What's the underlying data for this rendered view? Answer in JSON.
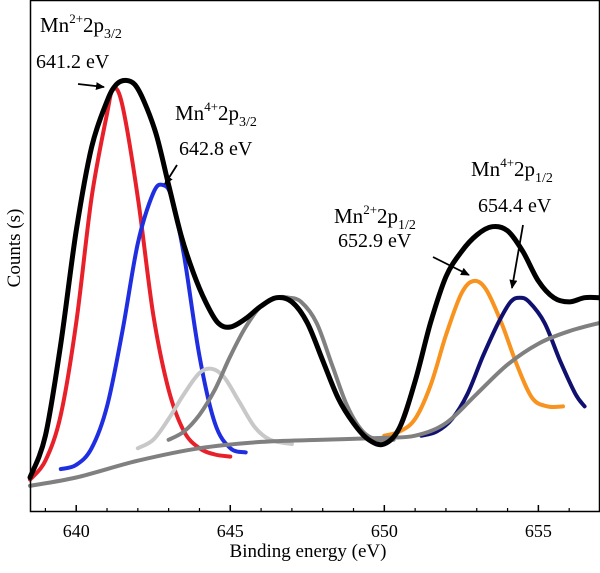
{
  "chart_data": {
    "type": "line",
    "title": "",
    "xlabel": "Binding energy (eV)",
    "ylabel": "Counts (s)",
    "xlim": [
      638.5,
      657
    ],
    "ylim": [
      0,
      100
    ],
    "xticks": [
      640,
      645,
      650,
      655
    ],
    "xtick_labels": [
      "640",
      "645",
      "650",
      "655"
    ],
    "yticks_shown": false,
    "grid": false,
    "series": [
      {
        "color": "#000000",
        "role": "envelope",
        "x": [
          638.5,
          639,
          639.5,
          640,
          640.5,
          641,
          641.3,
          641.6,
          641.9,
          642.2,
          642.6,
          643,
          643.4,
          643.8,
          644.2,
          644.6,
          645,
          645.5,
          646,
          646.5,
          647,
          647.5,
          648,
          648.5,
          649,
          649.5,
          650,
          650.5,
          651,
          651.5,
          652,
          652.5,
          653,
          653.5,
          654,
          654.5,
          655,
          655.5,
          656,
          656.5,
          657
        ],
        "y": [
          3,
          13,
          35,
          62,
          82,
          93,
          97,
          98,
          97,
          93,
          85,
          73,
          61,
          52,
          45,
          40,
          39,
          41,
          44,
          46,
          45,
          40,
          31,
          22,
          16,
          12,
          11,
          15,
          26,
          40,
          51,
          57,
          61,
          63,
          62,
          57,
          50,
          46,
          45,
          46,
          46
        ]
      },
      {
        "color": "#e8202a",
        "role": "Mn2+ 2p3/2 component",
        "x": [
          638.5,
          639,
          639.5,
          640,
          640.5,
          641,
          641.2,
          641.5,
          642,
          642.5,
          643,
          643.5,
          644,
          644.5,
          645
        ],
        "y": [
          2.5,
          7,
          18,
          40,
          70,
          90,
          96,
          92,
          70,
          42,
          24,
          14,
          10,
          8.5,
          8
        ]
      },
      {
        "color": "#1f2ee0",
        "role": "Mn4+ 2p3/2 component",
        "x": [
          639.5,
          640,
          640.5,
          641,
          641.5,
          642,
          642.5,
          642.8,
          643.1,
          643.5,
          644,
          644.5,
          645,
          645.5
        ],
        "y": [
          5,
          6,
          10,
          20,
          38,
          59,
          71,
          73,
          70,
          56,
          32,
          16,
          10,
          9
        ]
      },
      {
        "color": "#c8c8c8",
        "role": "satellite component (644.4 eV)",
        "x": [
          642,
          642.5,
          643,
          643.5,
          644,
          644.4,
          644.8,
          645.3,
          645.8,
          646.3,
          647
        ],
        "y": [
          10,
          12,
          17,
          23,
          28,
          29,
          27,
          21,
          15,
          12,
          11
        ]
      },
      {
        "color": "#808080",
        "role": "satellite component (646.9 eV)",
        "x": [
          643,
          643.5,
          644,
          644.5,
          645,
          645.5,
          646,
          646.5,
          646.9,
          647.3,
          647.8,
          648.3,
          648.8,
          649.3,
          649.8,
          650.3
        ],
        "y": [
          12,
          14,
          18,
          24,
          32,
          39,
          44,
          46,
          46,
          45,
          40,
          30,
          20,
          14,
          12,
          12
        ]
      },
      {
        "color": "#f7931e",
        "role": "Mn2+ 2p1/2 component",
        "x": [
          650,
          650.5,
          651,
          651.5,
          652,
          652.5,
          652.9,
          653.3,
          653.8,
          654.3,
          654.8,
          655.3,
          655.8
        ],
        "y": [
          13,
          14,
          17,
          25,
          37,
          47,
          50,
          48,
          40,
          30,
          22,
          20,
          20
        ]
      },
      {
        "color": "#101070",
        "role": "Mn4+ 2p1/2 component",
        "x": [
          651.2,
          651.7,
          652.2,
          652.7,
          653.2,
          653.7,
          654.1,
          654.4,
          654.7,
          655.2,
          655.7,
          656.2,
          656.5
        ],
        "y": [
          13,
          14,
          17,
          23,
          32,
          40,
          45,
          46,
          45,
          40,
          31,
          23,
          20
        ]
      },
      {
        "color": "#808080",
        "role": "background",
        "x": [
          638.5,
          640,
          642,
          644,
          646,
          648,
          650,
          651,
          652,
          653,
          654,
          655,
          656,
          657
        ],
        "y": [
          1,
          3,
          7,
          10,
          11.5,
          12,
          12.5,
          13,
          16,
          23,
          30,
          35,
          38,
          40
        ]
      }
    ],
    "annotations": [
      {
        "ion": "Mn",
        "charge": "2+",
        "orbital": "2p",
        "level": "3/2",
        "energy": "641.2 eV",
        "peak_x": 641.2,
        "peak_y": 96
      },
      {
        "ion": "Mn",
        "charge": "4+",
        "orbital": "2p",
        "level": "3/2",
        "energy": "642.8 eV",
        "peak_x": 642.8,
        "peak_y": 73
      },
      {
        "ion": "Mn",
        "charge": "2+",
        "orbital": "2p",
        "level": "1/2",
        "energy": "652.9 eV",
        "peak_x": 652.9,
        "peak_y": 50
      },
      {
        "ion": "Mn",
        "charge": "4+",
        "orbital": "2p",
        "level": "1/2",
        "energy": "654.4 eV",
        "peak_x": 654.4,
        "peak_y": 46
      }
    ]
  }
}
